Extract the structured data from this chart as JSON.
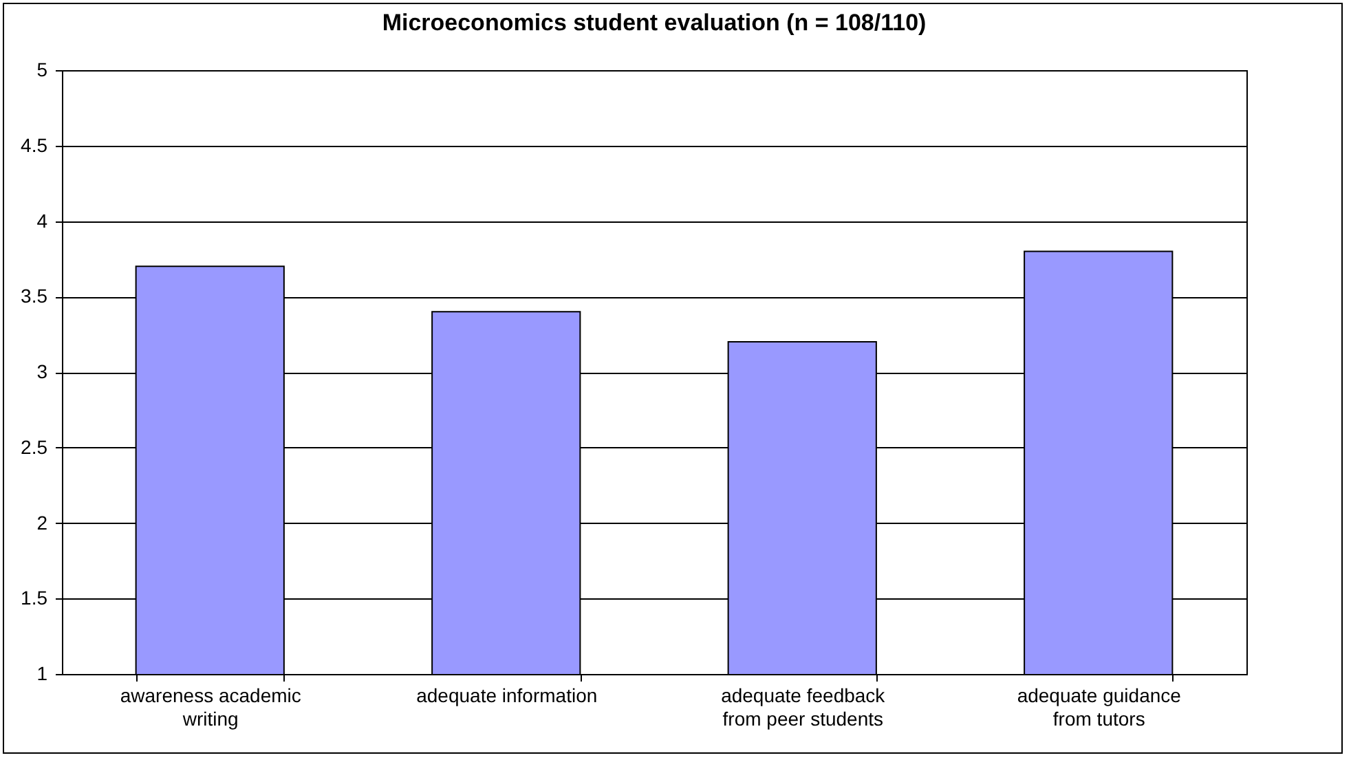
{
  "chart_data": {
    "type": "bar",
    "title": "Microeconomics student evaluation (n = 108/110)",
    "categories": [
      "awareness academic writing",
      "adequate information",
      "adequate feedback from peer students",
      "adequate guidance from tutors"
    ],
    "values": [
      3.7,
      3.4,
      3.2,
      3.8
    ],
    "color": "#9999ff",
    "ylim": [
      1,
      5
    ],
    "yticks": [
      1,
      1.5,
      2,
      2.5,
      3,
      3.5,
      4,
      4.5,
      5
    ],
    "grid": "y"
  }
}
